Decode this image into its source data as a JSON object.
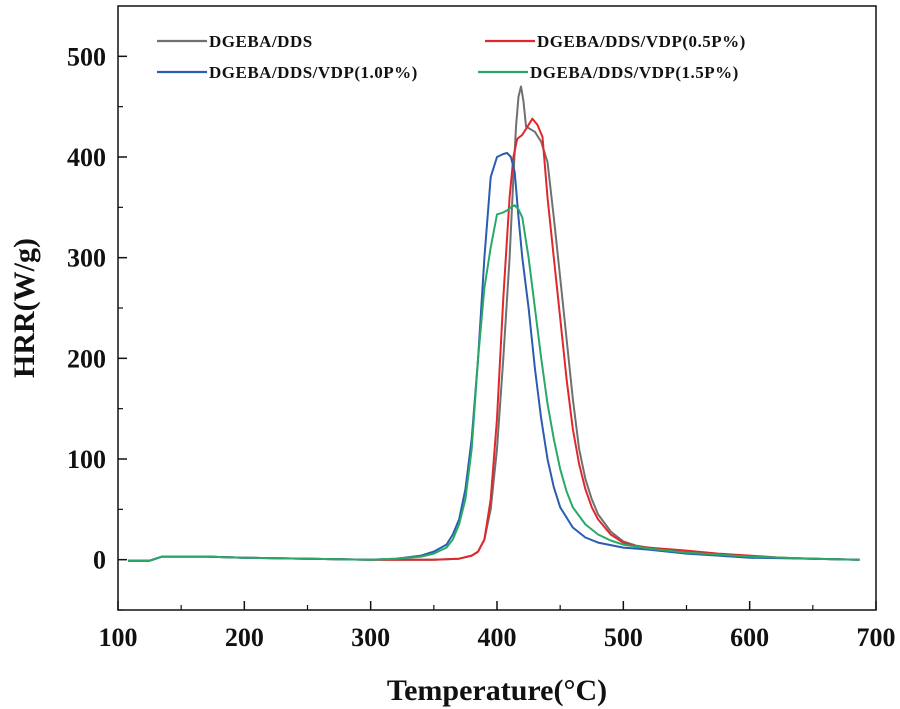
{
  "chart_data": {
    "type": "line",
    "title": "",
    "xlabel": "Temperature(°C)",
    "ylabel": "HRR(W/g)",
    "xlim": [
      100,
      700
    ],
    "ylim": [
      -50,
      550
    ],
    "xticks": [
      100,
      200,
      300,
      400,
      500,
      600,
      700
    ],
    "yticks": [
      0,
      100,
      200,
      300,
      400,
      500
    ],
    "xtick_labels": [
      "100",
      "200",
      "300",
      "400",
      "500",
      "600",
      "700"
    ],
    "ytick_labels": [
      "0",
      "100",
      "200",
      "300",
      "400",
      "500"
    ],
    "grid": false,
    "legend_position": "top",
    "series": [
      {
        "name": "DGEBA/DDS",
        "color": "#707070",
        "points": [
          [
            108,
            -1
          ],
          [
            125,
            -1
          ],
          [
            135,
            3
          ],
          [
            170,
            3
          ],
          [
            200,
            2
          ],
          [
            250,
            1
          ],
          [
            300,
            0
          ],
          [
            350,
            0
          ],
          [
            370,
            1
          ],
          [
            380,
            4
          ],
          [
            385,
            8
          ],
          [
            390,
            20
          ],
          [
            395,
            50
          ],
          [
            400,
            110
          ],
          [
            405,
            200
          ],
          [
            410,
            300
          ],
          [
            413,
            380
          ],
          [
            415,
            430
          ],
          [
            417,
            460
          ],
          [
            419,
            470
          ],
          [
            421,
            455
          ],
          [
            423,
            430
          ],
          [
            426,
            428
          ],
          [
            430,
            425
          ],
          [
            435,
            415
          ],
          [
            440,
            395
          ],
          [
            445,
            340
          ],
          [
            450,
            280
          ],
          [
            455,
            220
          ],
          [
            460,
            160
          ],
          [
            465,
            110
          ],
          [
            470,
            80
          ],
          [
            475,
            60
          ],
          [
            480,
            45
          ],
          [
            490,
            28
          ],
          [
            500,
            18
          ],
          [
            510,
            14
          ],
          [
            530,
            10
          ],
          [
            550,
            7
          ],
          [
            575,
            5
          ],
          [
            600,
            3
          ],
          [
            625,
            2
          ],
          [
            650,
            1
          ],
          [
            687,
            0
          ]
        ]
      },
      {
        "name": "DGEBA/DDS/VDP(0.5P%)",
        "color": "#e0282c",
        "points": [
          [
            108,
            -1
          ],
          [
            125,
            -1
          ],
          [
            135,
            3
          ],
          [
            170,
            3
          ],
          [
            200,
            2
          ],
          [
            250,
            1
          ],
          [
            300,
            0
          ],
          [
            350,
            0
          ],
          [
            370,
            1
          ],
          [
            380,
            4
          ],
          [
            385,
            8
          ],
          [
            390,
            20
          ],
          [
            395,
            60
          ],
          [
            400,
            140
          ],
          [
            405,
            260
          ],
          [
            410,
            360
          ],
          [
            413,
            400
          ],
          [
            416,
            418
          ],
          [
            420,
            422
          ],
          [
            425,
            432
          ],
          [
            428,
            438
          ],
          [
            432,
            432
          ],
          [
            436,
            420
          ],
          [
            440,
            360
          ],
          [
            445,
            300
          ],
          [
            450,
            240
          ],
          [
            455,
            180
          ],
          [
            460,
            130
          ],
          [
            465,
            95
          ],
          [
            470,
            70
          ],
          [
            475,
            52
          ],
          [
            480,
            40
          ],
          [
            490,
            25
          ],
          [
            500,
            17
          ],
          [
            510,
            13
          ],
          [
            530,
            11
          ],
          [
            550,
            9
          ],
          [
            575,
            6
          ],
          [
            600,
            4
          ],
          [
            625,
            2
          ],
          [
            650,
            1
          ],
          [
            687,
            0
          ]
        ]
      },
      {
        "name": "DGEBA/DDS/VDP(1.0P%)",
        "color": "#2a5cb0",
        "points": [
          [
            108,
            -1
          ],
          [
            125,
            -1
          ],
          [
            135,
            3
          ],
          [
            170,
            3
          ],
          [
            200,
            2
          ],
          [
            250,
            1
          ],
          [
            300,
            0
          ],
          [
            320,
            1
          ],
          [
            340,
            4
          ],
          [
            350,
            8
          ],
          [
            360,
            15
          ],
          [
            365,
            25
          ],
          [
            370,
            40
          ],
          [
            375,
            70
          ],
          [
            380,
            120
          ],
          [
            385,
            200
          ],
          [
            390,
            300
          ],
          [
            395,
            380
          ],
          [
            400,
            400
          ],
          [
            405,
            403
          ],
          [
            408,
            404
          ],
          [
            411,
            400
          ],
          [
            414,
            385
          ],
          [
            417,
            340
          ],
          [
            420,
            300
          ],
          [
            425,
            250
          ],
          [
            430,
            190
          ],
          [
            435,
            140
          ],
          [
            440,
            100
          ],
          [
            445,
            72
          ],
          [
            450,
            52
          ],
          [
            460,
            32
          ],
          [
            470,
            22
          ],
          [
            480,
            17
          ],
          [
            500,
            12
          ],
          [
            520,
            10
          ],
          [
            550,
            6
          ],
          [
            575,
            4
          ],
          [
            600,
            2
          ],
          [
            650,
            1
          ],
          [
            687,
            0
          ]
        ]
      },
      {
        "name": "DGEBA/DDS/VDP(1.5P%)",
        "color": "#2aa868",
        "points": [
          [
            108,
            -1
          ],
          [
            125,
            -1
          ],
          [
            135,
            3
          ],
          [
            170,
            3
          ],
          [
            200,
            2
          ],
          [
            250,
            1
          ],
          [
            300,
            0
          ],
          [
            320,
            1
          ],
          [
            340,
            3
          ],
          [
            350,
            6
          ],
          [
            360,
            12
          ],
          [
            365,
            20
          ],
          [
            370,
            35
          ],
          [
            375,
            60
          ],
          [
            380,
            110
          ],
          [
            385,
            200
          ],
          [
            390,
            270
          ],
          [
            395,
            310
          ],
          [
            398,
            330
          ],
          [
            400,
            343
          ],
          [
            405,
            345
          ],
          [
            408,
            347
          ],
          [
            411,
            350
          ],
          [
            414,
            352
          ],
          [
            417,
            348
          ],
          [
            420,
            340
          ],
          [
            425,
            300
          ],
          [
            430,
            250
          ],
          [
            435,
            200
          ],
          [
            440,
            155
          ],
          [
            445,
            120
          ],
          [
            450,
            90
          ],
          [
            455,
            68
          ],
          [
            460,
            52
          ],
          [
            470,
            35
          ],
          [
            480,
            25
          ],
          [
            490,
            19
          ],
          [
            500,
            15
          ],
          [
            520,
            11
          ],
          [
            550,
            7
          ],
          [
            575,
            5
          ],
          [
            600,
            3
          ],
          [
            650,
            1
          ],
          [
            687,
            0
          ]
        ]
      }
    ]
  }
}
